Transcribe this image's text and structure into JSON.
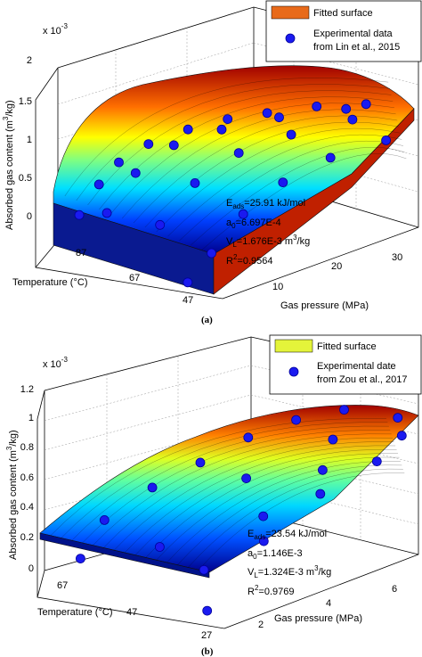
{
  "chart_data": [
    {
      "type": "surface",
      "panel_label": "(a)",
      "exponent_label": "x 10",
      "exponent_power": "-3",
      "zlabel": "Absorbed gas content (m",
      "zlabel_sup": "3",
      "zlabel_tail": "/kg)",
      "xlabel": "Gas pressure (MPa)",
      "ylabel": "Temperature (°C)",
      "z_ticks": [
        "0",
        "0.5",
        "1",
        "1.5",
        "2"
      ],
      "x_ticks": [
        "10",
        "20",
        "30"
      ],
      "y_ticks": [
        "87",
        "67",
        "47"
      ],
      "zlim": [
        0,
        2
      ],
      "legend": {
        "surface_label": "Fitted surface",
        "points_label_line1": "Experimental data",
        "points_label_line2": "from Lin et al., 2015",
        "position": "top-right"
      },
      "params": {
        "eads": "=25.91 kJ/mol",
        "a0": "=6.697E-4",
        "vl": "=1.676E-3 m",
        "vl_tail": "/kg",
        "r2": "=0.9564"
      },
      "surface_colormap": "jet",
      "experimental_points": [
        {
          "pressure": 1,
          "temperature": 95,
          "absorbed": 0.35
        },
        {
          "pressure": 3,
          "temperature": 95,
          "absorbed": 0.7
        },
        {
          "pressure": 5,
          "temperature": 95,
          "absorbed": 0.95
        },
        {
          "pressure": 8,
          "temperature": 95,
          "absorbed": 1.15
        },
        {
          "pressure": 12,
          "temperature": 95,
          "absorbed": 1.3
        },
        {
          "pressure": 16,
          "temperature": 95,
          "absorbed": 1.4
        },
        {
          "pressure": 20,
          "temperature": 95,
          "absorbed": 1.45
        },
        {
          "pressure": 25,
          "temperature": 95,
          "absorbed": 1.5
        },
        {
          "pressure": 30,
          "temperature": 95,
          "absorbed": 1.5
        },
        {
          "pressure": 2,
          "temperature": 87,
          "absorbed": 0.45
        },
        {
          "pressure": 5,
          "temperature": 87,
          "absorbed": 0.9
        },
        {
          "pressure": 9,
          "temperature": 87,
          "absorbed": 1.2
        },
        {
          "pressure": 14,
          "temperature": 87,
          "absorbed": 1.35
        },
        {
          "pressure": 20,
          "temperature": 87,
          "absorbed": 1.45
        },
        {
          "pressure": 27,
          "temperature": 87,
          "absorbed": 1.5
        },
        {
          "pressure": 3,
          "temperature": 67,
          "absorbed": 0.5
        },
        {
          "pressure": 7,
          "temperature": 67,
          "absorbed": 0.95
        },
        {
          "pressure": 12,
          "temperature": 67,
          "absorbed": 1.25
        },
        {
          "pressure": 18,
          "temperature": 67,
          "absorbed": 1.4
        },
        {
          "pressure": 25,
          "temperature": 67,
          "absorbed": 1.5
        },
        {
          "pressure": 1,
          "temperature": 47,
          "absorbed": 0.05
        },
        {
          "pressure": 4,
          "temperature": 47,
          "absorbed": 0.35
        },
        {
          "pressure": 8,
          "temperature": 47,
          "absorbed": 0.75
        },
        {
          "pressure": 13,
          "temperature": 47,
          "absorbed": 1.05
        },
        {
          "pressure": 19,
          "temperature": 47,
          "absorbed": 1.25
        },
        {
          "pressure": 26,
          "temperature": 47,
          "absorbed": 1.35
        }
      ]
    },
    {
      "type": "surface",
      "panel_label": "(b)",
      "exponent_label": "x 10",
      "exponent_power": "-3",
      "zlabel": "Absorbed gas content (m",
      "zlabel_sup": "3",
      "zlabel_tail": "/kg)",
      "xlabel": "Gas pressure (MPa)",
      "ylabel": "Temperature (°C)",
      "z_ticks": [
        "0",
        "0.2",
        "0.4",
        "0.6",
        "0.8",
        "1",
        "1.2"
      ],
      "x_ticks": [
        "2",
        "4",
        "6"
      ],
      "y_ticks": [
        "67",
        "47",
        "27"
      ],
      "zlim": [
        0,
        1.2
      ],
      "legend": {
        "surface_label": "Fitted surface",
        "points_label_line1": "Experimental date",
        "points_label_line2": "from Zou et al., 2017",
        "position": "top-right"
      },
      "params": {
        "eads": "=23.54 kJ/mol",
        "a0": "=1.146E-3",
        "vl": "=1.324E-3 m",
        "vl_tail": "/kg",
        "r2": "=0.9769"
      },
      "surface_colormap": "jet",
      "experimental_points": [
        {
          "pressure": 0.5,
          "temperature": 80,
          "absorbed": 0.1
        },
        {
          "pressure": 1,
          "temperature": 80,
          "absorbed": 0.35
        },
        {
          "pressure": 2,
          "temperature": 80,
          "absorbed": 0.55
        },
        {
          "pressure": 3,
          "temperature": 80,
          "absorbed": 0.7
        },
        {
          "pressure": 4,
          "temperature": 80,
          "absorbed": 0.85
        },
        {
          "pressure": 5,
          "temperature": 80,
          "absorbed": 0.95
        },
        {
          "pressure": 6,
          "temperature": 80,
          "absorbed": 1.0
        },
        {
          "pressure": 1,
          "temperature": 55,
          "absorbed": 0.3
        },
        {
          "pressure": 3,
          "temperature": 55,
          "absorbed": 0.7
        },
        {
          "pressure": 5,
          "temperature": 55,
          "absorbed": 0.9
        },
        {
          "pressure": 6.5,
          "temperature": 55,
          "absorbed": 1.0
        },
        {
          "pressure": 1,
          "temperature": 35,
          "absorbed": 0.25
        },
        {
          "pressure": 2.5,
          "temperature": 35,
          "absorbed": 0.55
        },
        {
          "pressure": 4,
          "temperature": 35,
          "absorbed": 0.8
        },
        {
          "pressure": 6,
          "temperature": 35,
          "absorbed": 0.95
        },
        {
          "pressure": 0.5,
          "temperature": 25,
          "absorbed": 0.05
        },
        {
          "pressure": 2,
          "temperature": 25,
          "absorbed": 0.45
        },
        {
          "pressure": 3.5,
          "temperature": 25,
          "absorbed": 0.7
        },
        {
          "pressure": 5,
          "temperature": 25,
          "absorbed": 0.85
        },
        {
          "pressure": 7,
          "temperature": 25,
          "absorbed": 1.05
        }
      ]
    }
  ]
}
